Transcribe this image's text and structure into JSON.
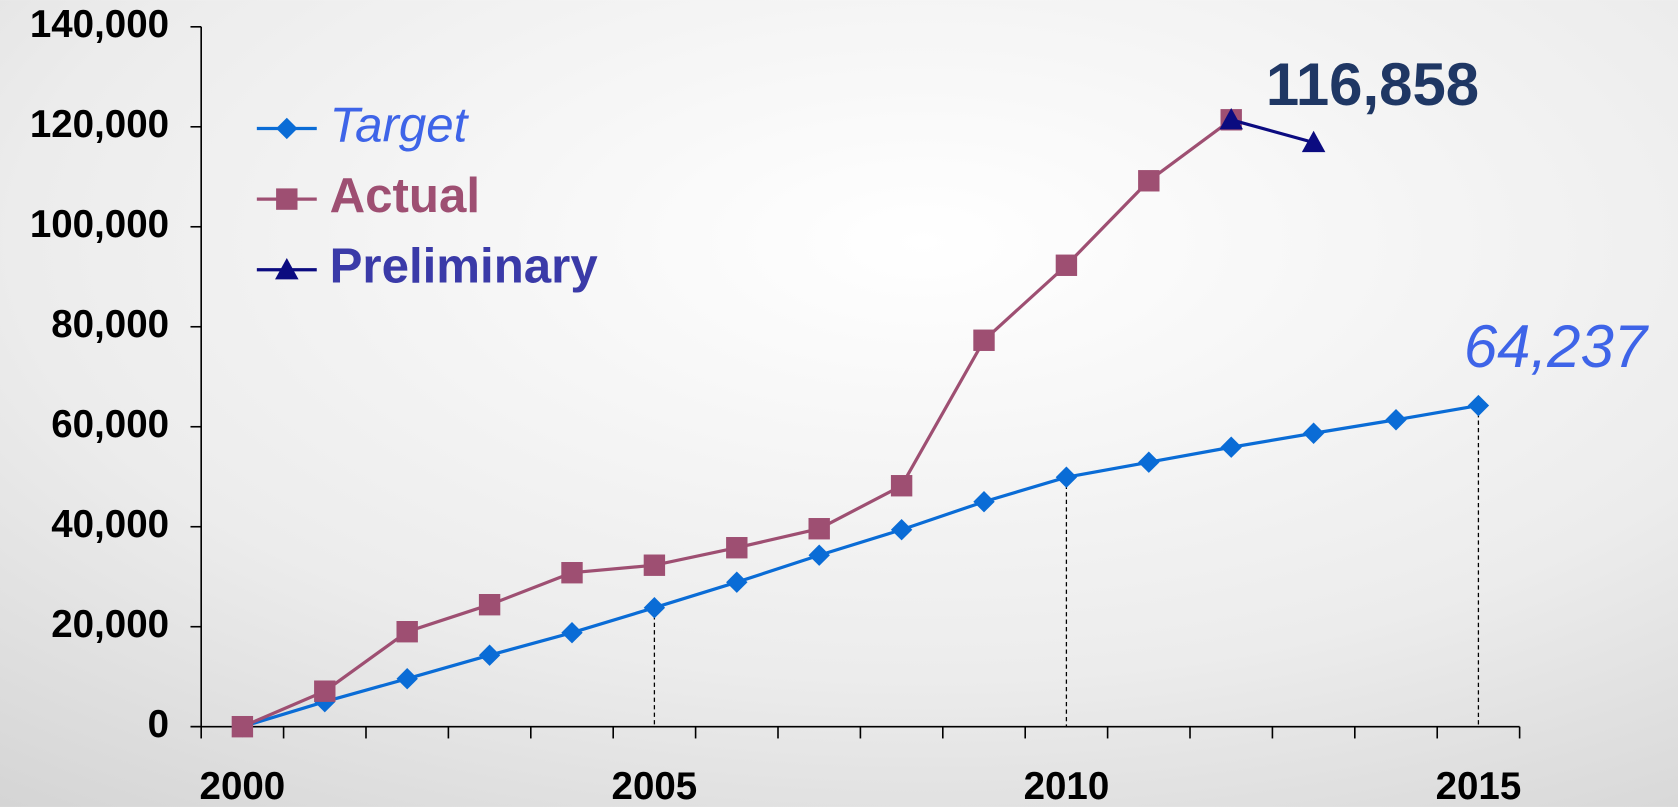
{
  "chart_data": {
    "type": "line",
    "x": [
      2000,
      2001,
      2002,
      2003,
      2004,
      2005,
      2006,
      2007,
      2008,
      2009,
      2010,
      2011,
      2012,
      2013,
      2014,
      2015
    ],
    "series": [
      {
        "name": "Target",
        "color": "#0a6cd6",
        "label_color": "#3e64e8",
        "marker": "diamond",
        "values": [
          0,
          5000,
          9600,
          14300,
          18800,
          23800,
          28900,
          34300,
          39400,
          45000,
          49900,
          52900,
          55900,
          58700,
          61400,
          64237
        ],
        "value_labels": [
          null,
          null,
          null,
          null,
          null,
          null,
          null,
          null,
          null,
          null,
          null,
          null,
          null,
          null,
          null,
          "64,237"
        ]
      },
      {
        "name": "Actual",
        "color": "#9e4f72",
        "label_color": "#9e4f72",
        "marker": "square",
        "values": [
          0,
          7100,
          19000,
          24400,
          30800,
          32300,
          35800,
          39600,
          48200,
          77300,
          92300,
          109200,
          121400,
          null,
          null,
          null
        ]
      },
      {
        "name": "Preliminary",
        "color": "#0b0b80",
        "label_color": "#3a3aa8",
        "marker": "triangle",
        "values": [
          null,
          null,
          null,
          null,
          null,
          null,
          null,
          null,
          null,
          null,
          null,
          null,
          121400,
          116858,
          null,
          null
        ],
        "value_labels": [
          null,
          null,
          null,
          null,
          null,
          null,
          null,
          null,
          null,
          null,
          null,
          null,
          null,
          "116,858",
          null,
          null
        ],
        "value_label_color": "#1f3764"
      }
    ],
    "xlim": [
      1999.5,
      2015.5
    ],
    "xticks": [
      2000,
      2005,
      2010,
      2015
    ],
    "ylim": [
      0,
      140000
    ],
    "yticks": [
      0,
      {
        "value": 20000,
        "label": "20,000"
      },
      {
        "value": 40000,
        "label": "40,000"
      },
      {
        "value": 60000,
        "label": "60,000"
      },
      {
        "value": 80000,
        "label": "80,000"
      },
      {
        "value": 100000,
        "label": "100,000"
      },
      {
        "value": 120000,
        "label": "120,000"
      },
      {
        "value": 140000,
        "label": "140,000"
      }
    ],
    "droplines": true,
    "legend": "upper left"
  }
}
